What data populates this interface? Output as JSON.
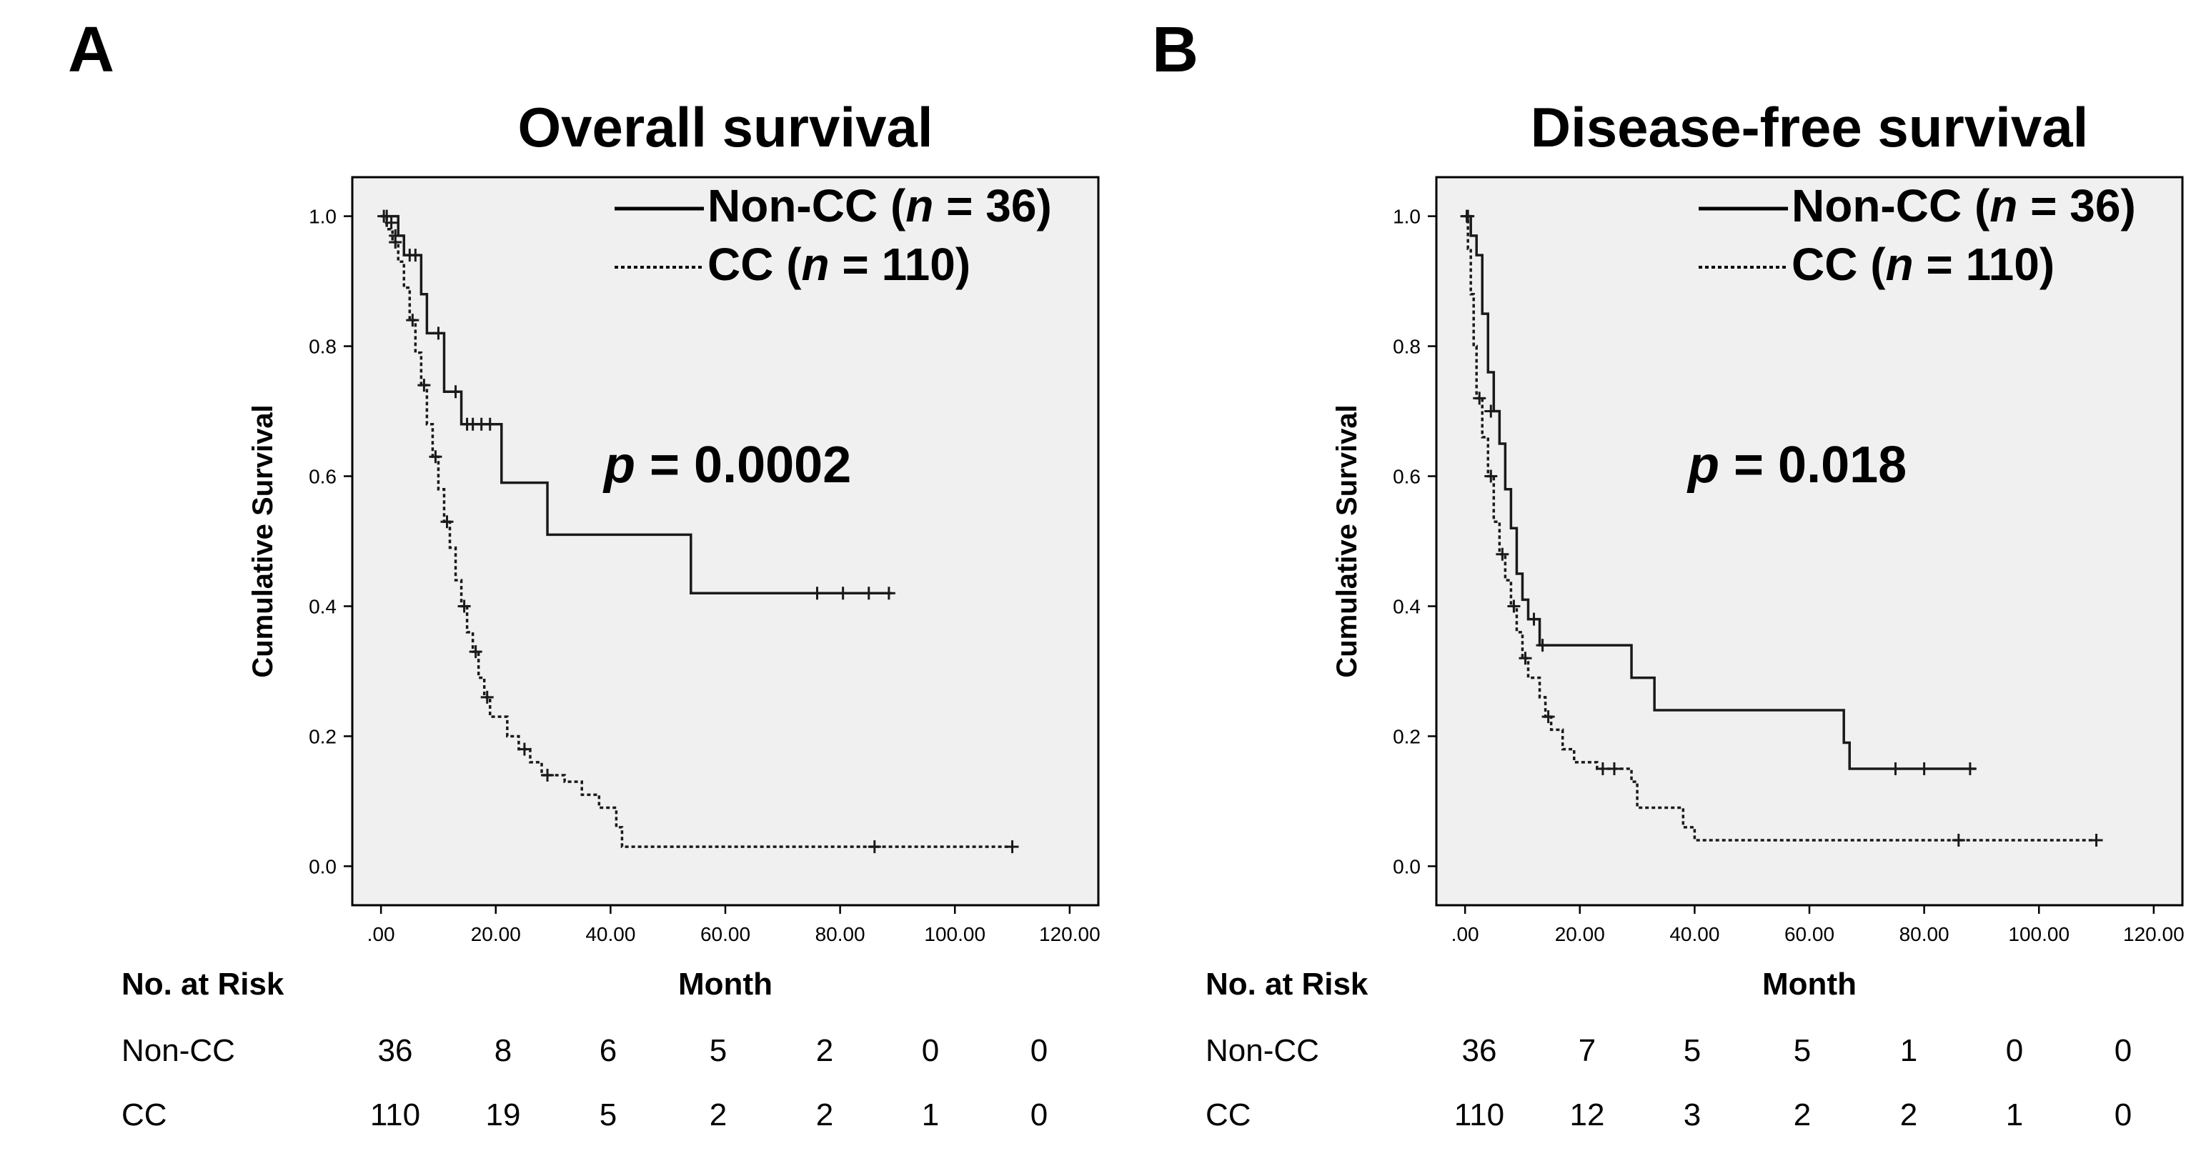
{
  "chart_data": [
    {
      "panel_label": "A",
      "type": "line",
      "subtype": "kaplan-meier",
      "title": "Overall survival",
      "xlabel": "Month",
      "ylabel": "Cumulative Survival",
      "xlim": [
        -5,
        125
      ],
      "ylim": [
        -0.06,
        1.06
      ],
      "x_ticks": [
        ".00",
        "20.00",
        "40.00",
        "60.00",
        "80.00",
        "100.00",
        "120.00"
      ],
      "y_ticks": [
        "0.0",
        "0.2",
        "0.4",
        "0.6",
        "0.8",
        "1.0"
      ],
      "annotation": {
        "prefix": "p",
        "text": " = 0.0002"
      },
      "legend_position": "top-right",
      "series": [
        {
          "name": "Non-CC",
          "legend": {
            "name": "Non-CC (",
            "n_symbol": "n",
            "n_text": " = 36)"
          },
          "style": "solid",
          "steps": [
            [
              0,
              1.0
            ],
            [
              3,
              0.97
            ],
            [
              4,
              0.94
            ],
            [
              7,
              0.88
            ],
            [
              8,
              0.82
            ],
            [
              11,
              0.73
            ],
            [
              14,
              0.68
            ],
            [
              21,
              0.59
            ],
            [
              29,
              0.51
            ],
            [
              54,
              0.42
            ],
            [
              89,
              0.42
            ]
          ],
          "censored": [
            [
              1,
              1.0
            ],
            [
              1.8,
              0.99
            ],
            [
              2.5,
              0.97
            ],
            [
              5,
              0.94
            ],
            [
              6,
              0.94
            ],
            [
              10,
              0.82
            ],
            [
              13,
              0.73
            ],
            [
              15,
              0.68
            ],
            [
              16,
              0.68
            ],
            [
              17.5,
              0.68
            ],
            [
              19,
              0.68
            ],
            [
              76,
              0.42
            ],
            [
              80.5,
              0.42
            ],
            [
              85,
              0.42
            ],
            [
              88.5,
              0.42
            ]
          ]
        },
        {
          "name": "CC",
          "legend": {
            "name": "CC (",
            "n_symbol": "n",
            "n_text": " = 110)"
          },
          "style": "dotted",
          "steps": [
            [
              0,
              1.0
            ],
            [
              1,
              0.98
            ],
            [
              2,
              0.96
            ],
            [
              3,
              0.93
            ],
            [
              4,
              0.89
            ],
            [
              5,
              0.84
            ],
            [
              6,
              0.79
            ],
            [
              7,
              0.74
            ],
            [
              8,
              0.68
            ],
            [
              9,
              0.63
            ],
            [
              10,
              0.58
            ],
            [
              11,
              0.53
            ],
            [
              12,
              0.49
            ],
            [
              13,
              0.44
            ],
            [
              14,
              0.4
            ],
            [
              15,
              0.36
            ],
            [
              16,
              0.33
            ],
            [
              17,
              0.29
            ],
            [
              18,
              0.26
            ],
            [
              19,
              0.23
            ],
            [
              22,
              0.2
            ],
            [
              24,
              0.18
            ],
            [
              26,
              0.16
            ],
            [
              28,
              0.14
            ],
            [
              32,
              0.13
            ],
            [
              35,
              0.11
            ],
            [
              38,
              0.09
            ],
            [
              41,
              0.06
            ],
            [
              42,
              0.03
            ],
            [
              110,
              0.03
            ]
          ],
          "censored": [
            [
              0.5,
              1.0
            ],
            [
              2.5,
              0.96
            ],
            [
              5.5,
              0.84
            ],
            [
              7.5,
              0.74
            ],
            [
              9.5,
              0.63
            ],
            [
              11.5,
              0.53
            ],
            [
              14.5,
              0.4
            ],
            [
              16.5,
              0.33
            ],
            [
              18.5,
              0.26
            ],
            [
              25,
              0.18
            ],
            [
              29,
              0.14
            ],
            [
              86,
              0.03
            ],
            [
              110,
              0.03
            ]
          ]
        }
      ],
      "risk_table": {
        "header": "No. at Risk",
        "rows": [
          {
            "label": "Non-CC",
            "values": [
              "36",
              "8",
              "6",
              "5",
              "2",
              "0",
              "0"
            ]
          },
          {
            "label": "CC",
            "values": [
              "110",
              "19",
              "5",
              "2",
              "2",
              "1",
              "0"
            ]
          }
        ]
      }
    },
    {
      "panel_label": "B",
      "type": "line",
      "subtype": "kaplan-meier",
      "title": "Disease-free survival",
      "xlabel": "Month",
      "ylabel": "Cumulative Survival",
      "xlim": [
        -5,
        125
      ],
      "ylim": [
        -0.06,
        1.06
      ],
      "x_ticks": [
        ".00",
        "20.00",
        "40.00",
        "60.00",
        "80.00",
        "100.00",
        "120.00"
      ],
      "y_ticks": [
        "0.0",
        "0.2",
        "0.4",
        "0.6",
        "0.8",
        "1.0"
      ],
      "annotation": {
        "prefix": "p",
        "text": " = 0.018"
      },
      "legend_position": "top-right",
      "series": [
        {
          "name": "Non-CC",
          "legend": {
            "name": "Non-CC (",
            "n_symbol": "n",
            "n_text": " = 36)"
          },
          "style": "solid",
          "steps": [
            [
              0,
              1.0
            ],
            [
              1,
              0.97
            ],
            [
              2,
              0.94
            ],
            [
              3,
              0.85
            ],
            [
              4,
              0.76
            ],
            [
              5,
              0.7
            ],
            [
              6,
              0.65
            ],
            [
              7,
              0.58
            ],
            [
              8,
              0.52
            ],
            [
              9,
              0.45
            ],
            [
              10,
              0.41
            ],
            [
              11,
              0.38
            ],
            [
              13,
              0.34
            ],
            [
              29,
              0.29
            ],
            [
              33,
              0.24
            ],
            [
              66,
              0.19
            ],
            [
              67,
              0.15
            ],
            [
              89,
              0.15
            ]
          ],
          "censored": [
            [
              0.5,
              1.0
            ],
            [
              4.5,
              0.7
            ],
            [
              12,
              0.38
            ],
            [
              13.5,
              0.34
            ],
            [
              75,
              0.15
            ],
            [
              80,
              0.15
            ],
            [
              88,
              0.15
            ]
          ]
        },
        {
          "name": "CC",
          "legend": {
            "name": "CC (",
            "n_symbol": "n",
            "n_text": " = 110)"
          },
          "style": "dotted",
          "steps": [
            [
              0,
              1.0
            ],
            [
              0.5,
              0.95
            ],
            [
              1,
              0.88
            ],
            [
              1.5,
              0.8
            ],
            [
              2,
              0.72
            ],
            [
              3,
              0.66
            ],
            [
              4,
              0.6
            ],
            [
              5,
              0.53
            ],
            [
              6,
              0.48
            ],
            [
              7,
              0.44
            ],
            [
              8,
              0.4
            ],
            [
              9,
              0.36
            ],
            [
              10,
              0.32
            ],
            [
              11,
              0.29
            ],
            [
              13,
              0.26
            ],
            [
              14,
              0.23
            ],
            [
              15,
              0.21
            ],
            [
              17,
              0.18
            ],
            [
              19,
              0.16
            ],
            [
              23,
              0.15
            ],
            [
              29,
              0.13
            ],
            [
              30,
              0.09
            ],
            [
              38,
              0.06
            ],
            [
              40,
              0.04
            ],
            [
              110,
              0.04
            ]
          ],
          "censored": [
            [
              0.3,
              1.0
            ],
            [
              2.5,
              0.72
            ],
            [
              4.5,
              0.6
            ],
            [
              6.5,
              0.48
            ],
            [
              8.5,
              0.4
            ],
            [
              10.5,
              0.32
            ],
            [
              14.5,
              0.23
            ],
            [
              24,
              0.15
            ],
            [
              26,
              0.15
            ],
            [
              86,
              0.04
            ],
            [
              110,
              0.04
            ]
          ]
        }
      ],
      "risk_table": {
        "header": "No. at Risk",
        "rows": [
          {
            "label": "Non-CC",
            "values": [
              "36",
              "7",
              "5",
              "5",
              "1",
              "0",
              "0"
            ]
          },
          {
            "label": "CC",
            "values": [
              "110",
              "12",
              "3",
              "2",
              "2",
              "1",
              "0"
            ]
          }
        ]
      }
    }
  ]
}
